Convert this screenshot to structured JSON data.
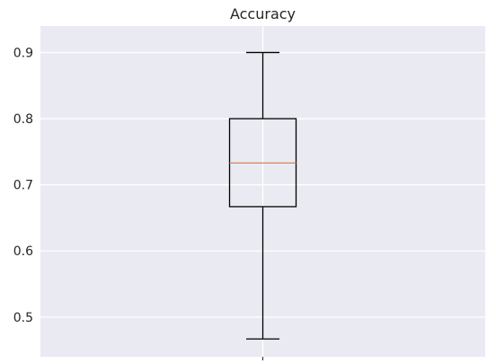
{
  "chart_data": {
    "type": "box",
    "title": "Accuracy",
    "xlabel": "",
    "ylabel": "",
    "ylim": [
      0.44,
      0.94
    ],
    "yticks": [
      0.5,
      0.6,
      0.7,
      0.8,
      0.9
    ],
    "ytick_labels": [
      "0.5",
      "0.6",
      "0.7",
      "0.8",
      "0.9"
    ],
    "grid": true,
    "colors": {
      "background": "#eaeaf2",
      "grid": "#ffffff",
      "box": "#000000",
      "median": "#dd8452",
      "text": "#262626"
    },
    "boxes": [
      {
        "whisker_low": 0.467,
        "q1": 0.667,
        "median": 0.733,
        "q3": 0.8,
        "whisker_high": 0.9
      }
    ]
  }
}
